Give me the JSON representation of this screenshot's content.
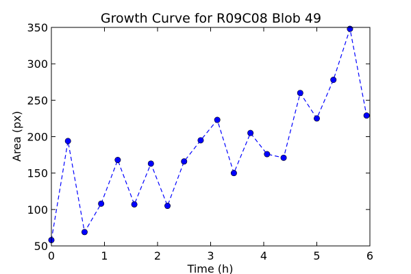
{
  "chart_data": {
    "type": "line",
    "title": "Growth Curve for R09C08 Blob 49",
    "xlabel": "Time (h)",
    "ylabel": "Area (px)",
    "xlim": [
      0,
      6
    ],
    "ylim": [
      50,
      350
    ],
    "xticks": [
      0,
      1,
      2,
      3,
      4,
      5,
      6
    ],
    "yticks": [
      50,
      100,
      150,
      200,
      250,
      300,
      350
    ],
    "grid": false,
    "line_style": "dashed",
    "marker": "circle",
    "color": "#0000ff",
    "series": [
      {
        "x": [
          0.0,
          0.3125,
          0.625,
          0.9375,
          1.25,
          1.5625,
          1.875,
          2.1875,
          2.5,
          2.8125,
          3.125,
          3.4375,
          3.75,
          4.0625,
          4.375,
          4.6875,
          5.0,
          5.3125,
          5.625,
          5.9375
        ],
        "y": [
          58,
          194,
          69,
          108,
          168,
          107,
          163,
          105,
          166,
          195,
          223,
          150,
          205,
          176,
          171,
          260,
          225,
          278,
          348,
          229
        ]
      }
    ]
  }
}
